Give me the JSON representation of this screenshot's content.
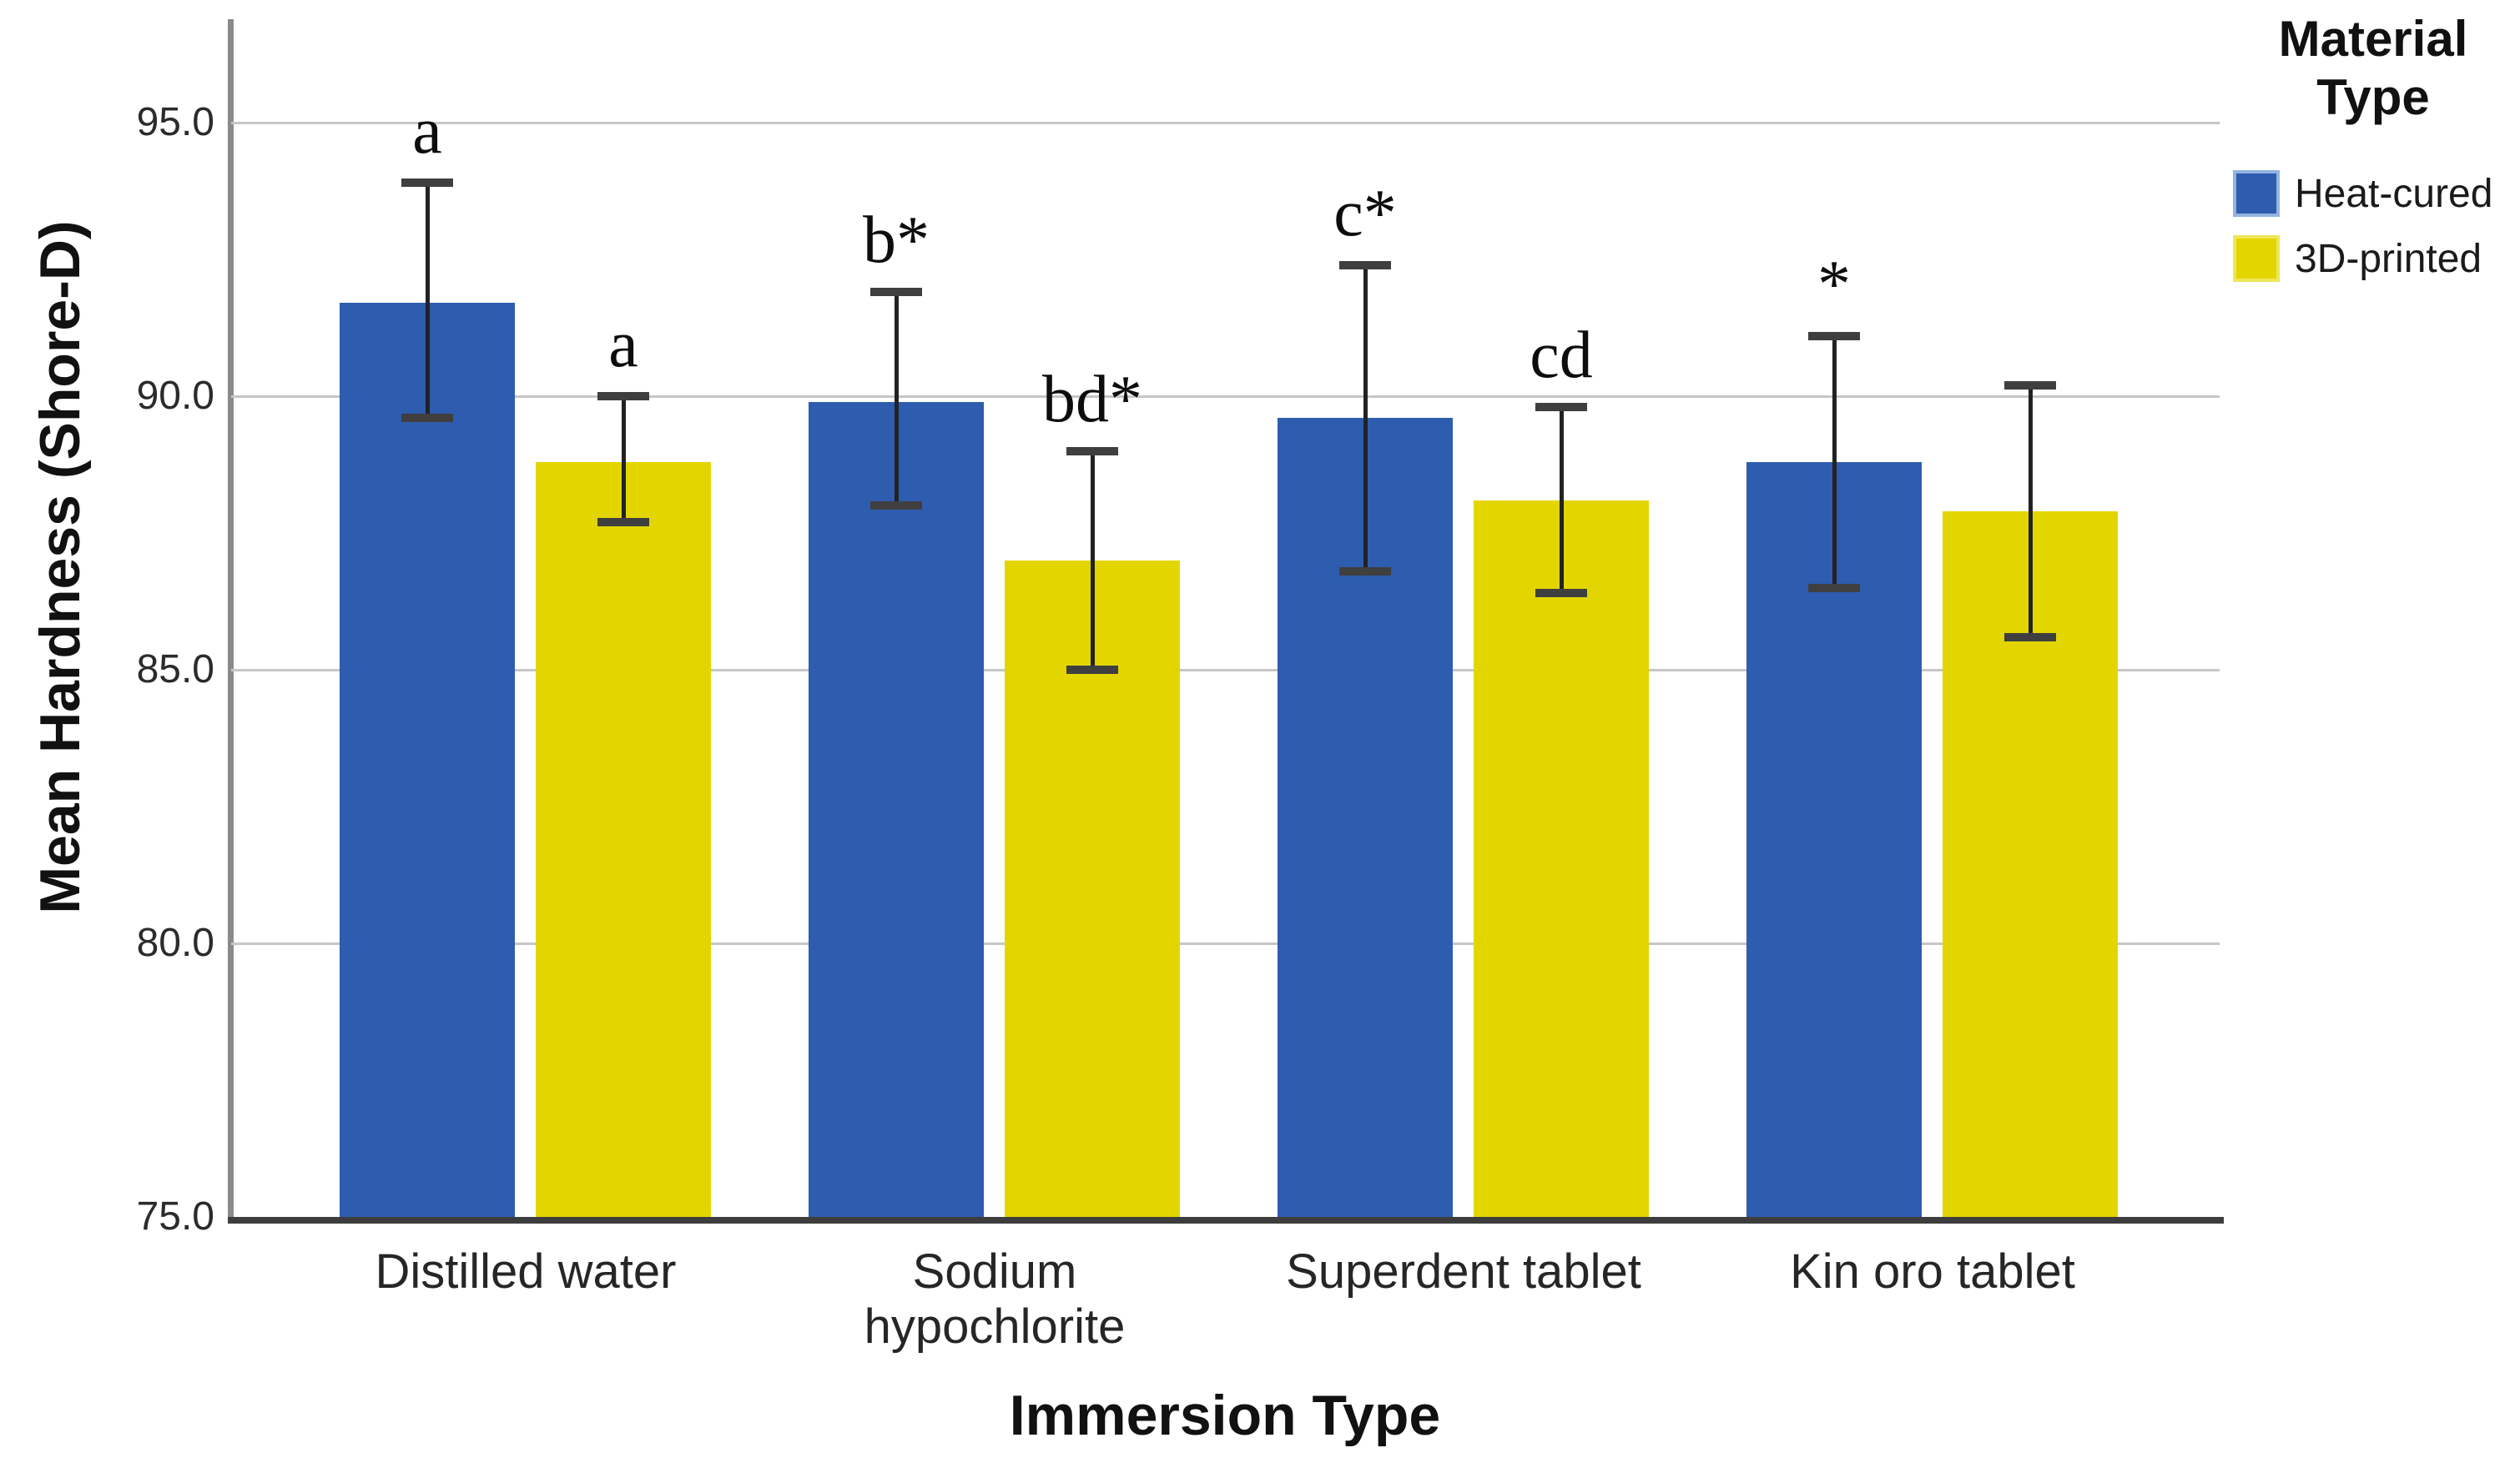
{
  "chart_data": {
    "type": "bar",
    "title": "",
    "xlabel": "Immersion Type",
    "ylabel": "Mean Hardness  (Shore-D)",
    "ylim": [
      75,
      95
    ],
    "yticks": [
      75.0,
      80.0,
      85.0,
      90.0,
      95.0
    ],
    "ytick_labels": [
      "75.0",
      "80.0",
      "85.0",
      "90.0",
      "95.0"
    ],
    "grid": "horizontal",
    "legend_position": "top-right",
    "legend_title": "Material\nType",
    "categories": [
      "Distilled water",
      "Sodium\nhypochlorite",
      "Superdent tablet",
      "Kin oro tablet"
    ],
    "series": [
      {
        "name": "Heat-cured",
        "color": "#2E5CAE",
        "legend_border": "#94B3E0",
        "values": [
          91.7,
          89.9,
          89.6,
          88.8
        ],
        "error_upper": [
          93.9,
          91.9,
          92.4,
          91.1
        ],
        "error_lower": [
          89.6,
          88.0,
          86.8,
          86.5
        ],
        "annotations": [
          "a",
          "b*",
          "c*",
          "*"
        ]
      },
      {
        "name": "3D-printed",
        "color": "#E3D600",
        "legend_border": "#EDE65A",
        "values": [
          88.8,
          87.0,
          88.1,
          87.9
        ],
        "error_upper": [
          90.0,
          89.0,
          89.8,
          90.2
        ],
        "error_lower": [
          87.7,
          85.0,
          86.4,
          85.6
        ],
        "annotations": [
          "a",
          "bd*",
          "cd",
          ""
        ]
      }
    ]
  }
}
